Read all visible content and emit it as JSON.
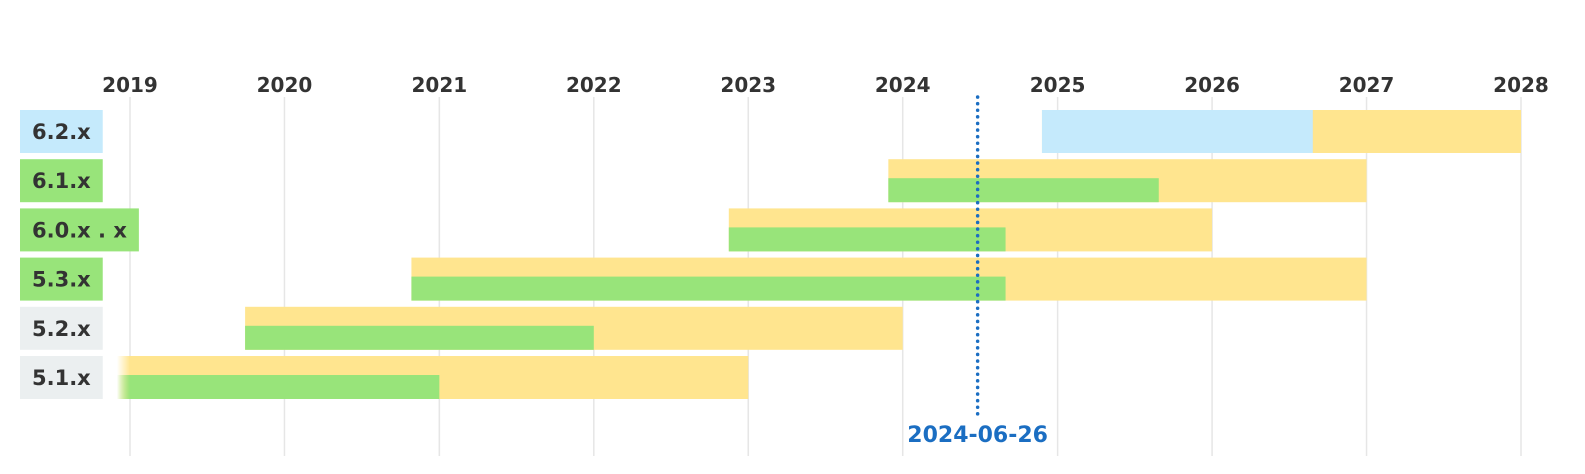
{
  "chart_data": {
    "type": "bar",
    "title": "",
    "x_axis": {
      "type": "date",
      "range": [
        "2019-01-01",
        "2028-01-01"
      ],
      "tick_labels": [
        "2019",
        "2020",
        "2021",
        "2022",
        "2023",
        "2024",
        "2025",
        "2026",
        "2027",
        "2028"
      ],
      "position": "top",
      "grid": true
    },
    "colors": {
      "outer_bar": "#ffe58f",
      "active_bar": "#98e47a",
      "upcoming_bar": "#c5eafc",
      "label_active": "#98e47a",
      "label_upcoming": "#c5eafc",
      "label_eol": "#ebeff0",
      "today_line": "#1b6ec2",
      "grid": "#e6e6e6"
    },
    "today": {
      "label": "2024-06-26",
      "date": "2024-06-26"
    },
    "releases": [
      {
        "label": "6.2.x",
        "status": "upcoming",
        "upcoming": [
          "2024-11-25",
          "2026-08-27"
        ],
        "outer": [
          "2024-11-25",
          "2028-01-01"
        ]
      },
      {
        "label": "6.1.x",
        "status": "active",
        "outer": [
          "2023-11-28",
          "2027-01-01"
        ],
        "active": [
          "2023-11-28",
          "2025-08-28"
        ]
      },
      {
        "label": "6.0.x . x",
        "status": "active",
        "outer": [
          "2022-11-16",
          "2026-01-01"
        ],
        "active": [
          "2022-11-16",
          "2024-08-31"
        ]
      },
      {
        "label": "5.3.x",
        "status": "active",
        "outer": [
          "2020-10-27",
          "2027-01-01"
        ],
        "active": [
          "2020-10-27",
          "2024-08-31"
        ]
      },
      {
        "label": "5.2.x",
        "status": "eol",
        "outer": [
          "2019-09-30",
          "2024-01-01"
        ],
        "active": [
          "2019-09-30",
          "2022-01-01"
        ]
      },
      {
        "label": "5.1.x",
        "status": "eol",
        "outer": [
          "2018-12-01",
          "2023-01-01"
        ],
        "active": [
          "2018-12-01",
          "2021-01-01"
        ]
      }
    ]
  }
}
